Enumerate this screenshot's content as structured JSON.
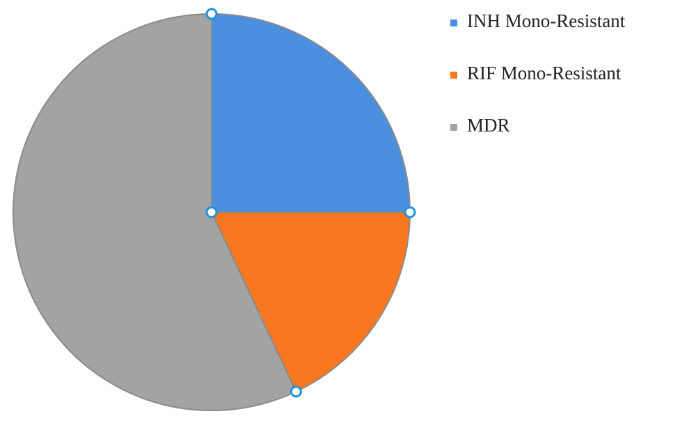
{
  "chart_data": {
    "type": "pie",
    "categories": [
      "INH Mono-Resistant",
      "RIF Mono-Resistant",
      "MDR"
    ],
    "values": [
      25,
      18,
      57
    ],
    "colors": [
      "#4a8fe0",
      "#f9781f",
      "#a3a3a3"
    ],
    "legend": "right"
  }
}
